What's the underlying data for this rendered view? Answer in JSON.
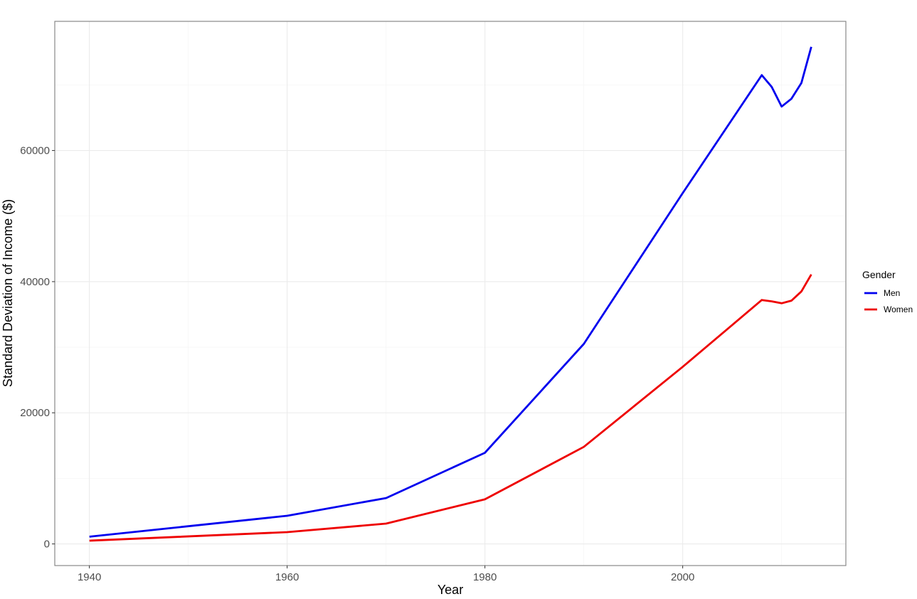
{
  "chart_data": {
    "type": "line",
    "title": "",
    "xlabel": "Year",
    "ylabel": "Standard Deviation of Income ($)",
    "xlim": [
      1936.5,
      2016.5
    ],
    "ylim": [
      -3300,
      79700
    ],
    "x_ticks": [
      1940,
      1960,
      1980,
      2000
    ],
    "x_minor": [
      1950,
      1970,
      1990,
      2010
    ],
    "y_ticks": [
      0,
      20000,
      40000,
      60000
    ],
    "y_minor": [
      10000,
      30000,
      50000,
      70000
    ],
    "x_tick_labels": [
      "1940",
      "1960",
      "1980",
      "2000"
    ],
    "y_tick_labels": [
      "0",
      "20000",
      "40000",
      "60000"
    ],
    "grid": true,
    "legend": {
      "title": "Gender",
      "position": "right"
    },
    "series": [
      {
        "name": "Men",
        "color": "#0000ee",
        "x": [
          1940,
          1960,
          1970,
          1980,
          1990,
          2000,
          2008,
          2009,
          2010,
          2011,
          2012,
          2013
        ],
        "y": [
          1100,
          4300,
          7000,
          13900,
          30500,
          53500,
          71500,
          69700,
          66700,
          67900,
          70300,
          75800
        ]
      },
      {
        "name": "Women",
        "color": "#ee0000",
        "x": [
          1940,
          1960,
          1970,
          1980,
          1990,
          2000,
          2008,
          2009,
          2010,
          2011,
          2012,
          2013
        ],
        "y": [
          500,
          1800,
          3100,
          6800,
          14800,
          27000,
          37200,
          37000,
          36700,
          37100,
          38500,
          41100
        ]
      }
    ]
  }
}
